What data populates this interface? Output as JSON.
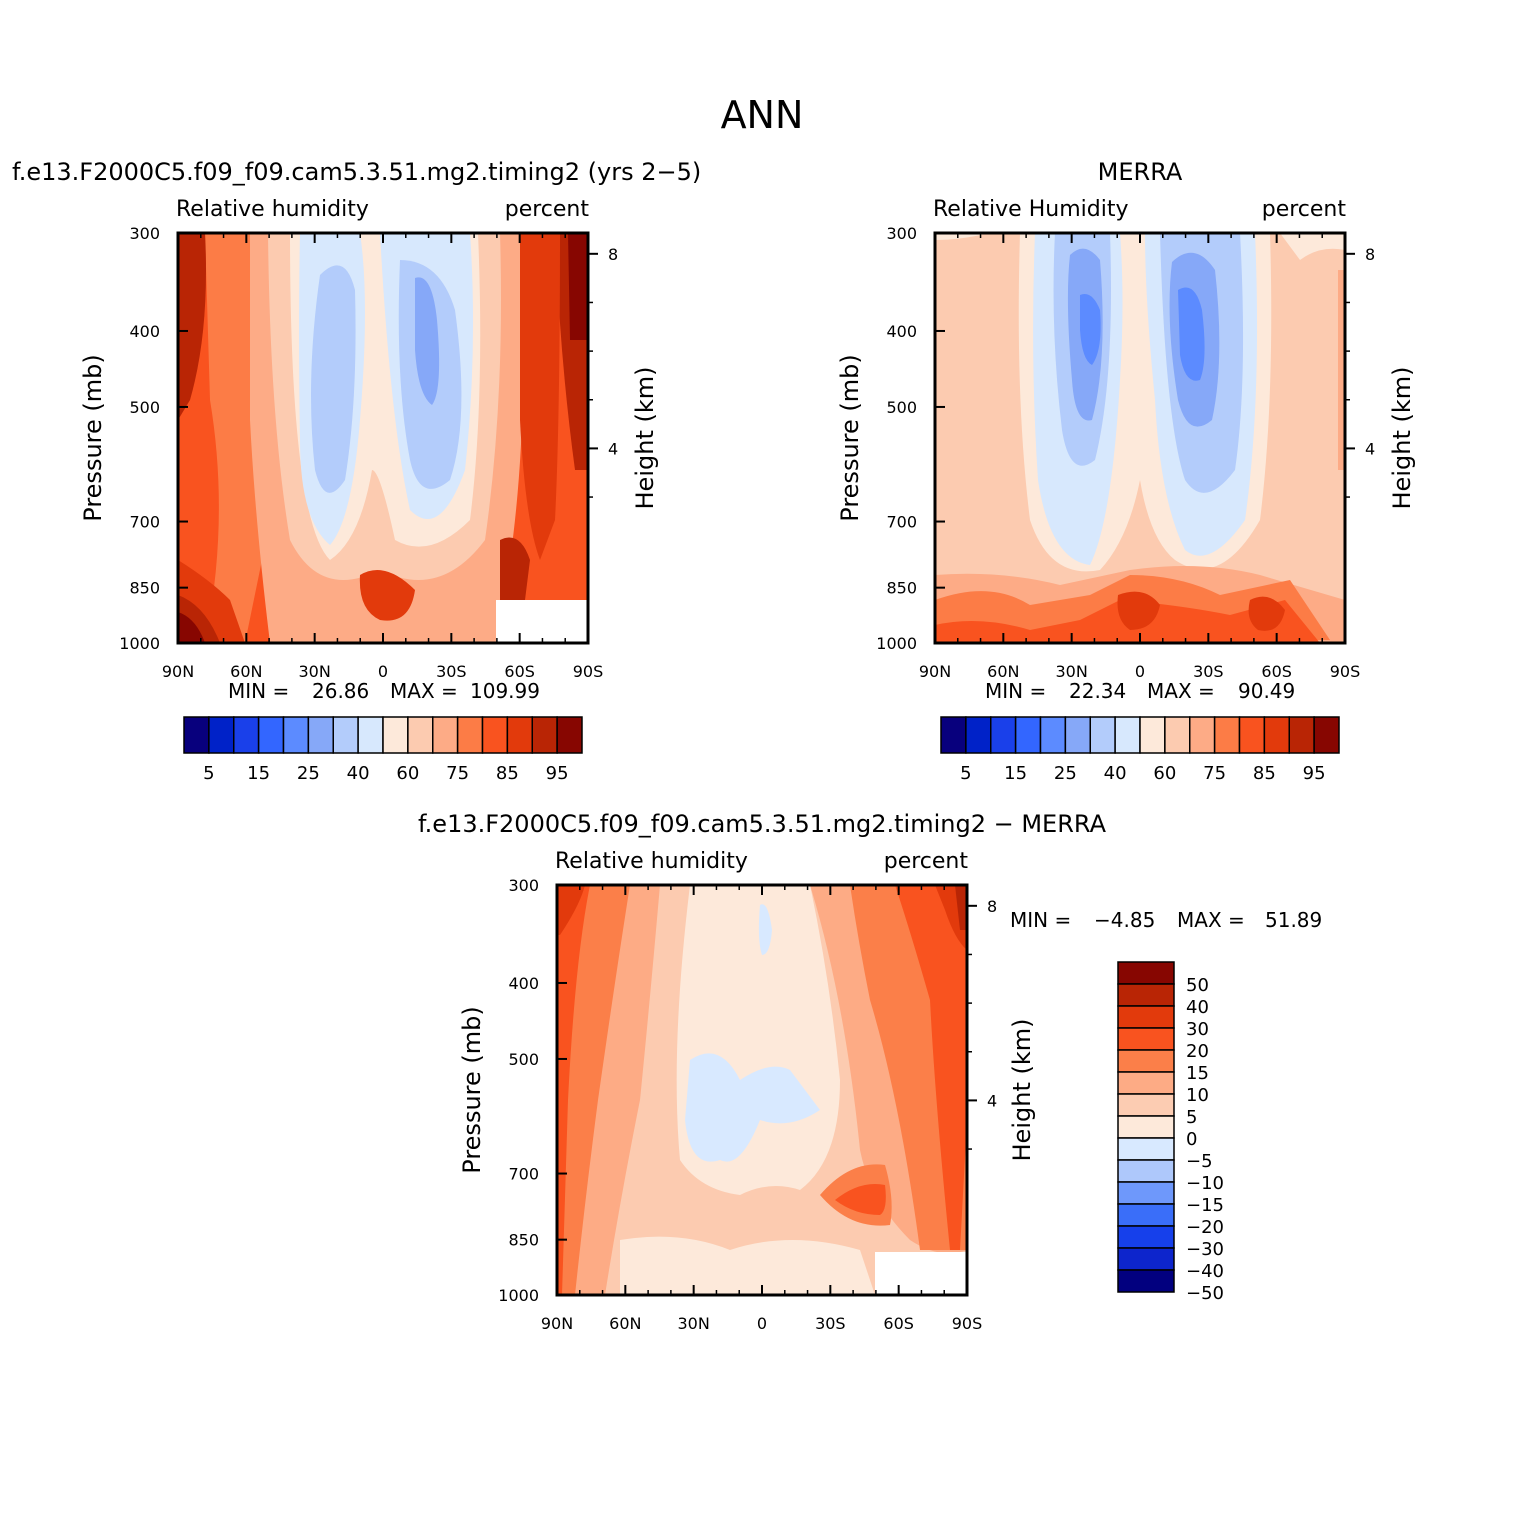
{
  "page_title": "ANN",
  "colors": {
    "rh_levels": [
      "#08007d",
      "#0022c8",
      "#1a40ea",
      "#3366ff",
      "#5c8bff",
      "#86a8f8",
      "#b3ccfb",
      "#d7e8fd",
      "#fde9da",
      "#fccbb0",
      "#fdab86",
      "#fc7c46",
      "#f9531f",
      "#e23a0c",
      "#b92505",
      "#870601"
    ],
    "diff_levels": [
      "#02007f",
      "#0d25cc",
      "#1640eb",
      "#3a6ef9",
      "#6e98fb",
      "#aec8fb",
      "#d8e9ff",
      "#fde9da",
      "#fcccb2",
      "#fdab85",
      "#fb7f49",
      "#f9531f",
      "#e23a0c",
      "#b92505",
      "#870601"
    ]
  },
  "panel_a": {
    "title": "f.e13.F2000C5.f09_f09.cam5.3.51.mg2.timing2 (yrs 2−5)",
    "left_string": "Relative humidity",
    "right_string": "percent",
    "min_label": "MIN =",
    "min_value": "26.86",
    "max_label": "MAX =",
    "max_value": "109.99"
  },
  "panel_b": {
    "title": "MERRA",
    "left_string": "Relative Humidity",
    "right_string": "percent",
    "min_label": "MIN =",
    "min_value": "22.34",
    "max_label": "MAX =",
    "max_value": "90.49"
  },
  "panel_c": {
    "title": "f.e13.F2000C5.f09_f09.cam5.3.51.mg2.timing2 − MERRA",
    "left_string": "Relative humidity",
    "right_string": "percent",
    "min_label": "MIN =",
    "min_value": "−4.85",
    "max_label": "MAX =",
    "max_value": "51.89"
  },
  "chart_data": [
    {
      "type": "heatmap",
      "title": "f.e13.F2000C5.f09_f09.cam5.3.51.mg2.timing2 (yrs 2−5)",
      "ylabel": "Pressure (mb)",
      "y2label": "Height (km)",
      "x_ticks": [
        "90N",
        "60N",
        "30N",
        "0",
        "30S",
        "60S",
        "90S"
      ],
      "x_values": [
        90,
        60,
        30,
        0,
        -30,
        -60,
        -90
      ],
      "y_ticks": [
        "300",
        "400",
        "500",
        "700",
        "850",
        "1000"
      ],
      "y_values": [
        300,
        400,
        500,
        700,
        850,
        1000
      ],
      "y2_ticks": [
        "8",
        "4"
      ],
      "y2_values": [
        8,
        4
      ],
      "ylim": [
        1000,
        300
      ],
      "contour_levels": [
        5,
        10,
        15,
        20,
        25,
        30,
        40,
        50,
        60,
        70,
        75,
        80,
        85,
        90,
        95
      ],
      "colorbar_labels": [
        "5",
        "15",
        "25",
        "40",
        "60",
        "75",
        "85",
        "95"
      ]
    },
    {
      "type": "heatmap",
      "title": "MERRA",
      "ylabel": "Pressure (mb)",
      "y2label": "Height (km)",
      "x_ticks": [
        "90N",
        "60N",
        "30N",
        "0",
        "30S",
        "60S",
        "90S"
      ],
      "x_values": [
        90,
        60,
        30,
        0,
        -30,
        -60,
        -90
      ],
      "y_ticks": [
        "300",
        "400",
        "500",
        "700",
        "850",
        "1000"
      ],
      "y_values": [
        300,
        400,
        500,
        700,
        850,
        1000
      ],
      "y2_ticks": [
        "8",
        "4"
      ],
      "y2_values": [
        8,
        4
      ],
      "ylim": [
        1000,
        300
      ],
      "contour_levels": [
        5,
        10,
        15,
        20,
        25,
        30,
        40,
        50,
        60,
        70,
        75,
        80,
        85,
        90,
        95
      ],
      "colorbar_labels": [
        "5",
        "15",
        "25",
        "40",
        "60",
        "75",
        "85",
        "95"
      ]
    },
    {
      "type": "heatmap",
      "title": "f.e13.F2000C5.f09_f09.cam5.3.51.mg2.timing2 − MERRA",
      "ylabel": "Pressure (mb)",
      "y2label": "Height (km)",
      "x_ticks": [
        "90N",
        "60N",
        "30N",
        "0",
        "30S",
        "60S",
        "90S"
      ],
      "x_values": [
        90,
        60,
        30,
        0,
        -30,
        -60,
        -90
      ],
      "y_ticks": [
        "300",
        "400",
        "500",
        "700",
        "850",
        "1000"
      ],
      "y_values": [
        300,
        400,
        500,
        700,
        850,
        1000
      ],
      "y2_ticks": [
        "8",
        "4"
      ],
      "y2_values": [
        8,
        4
      ],
      "ylim": [
        1000,
        300
      ],
      "contour_levels": [
        -50,
        -40,
        -30,
        -20,
        -15,
        -10,
        -5,
        0,
        5,
        10,
        15,
        20,
        30,
        40,
        50
      ],
      "colorbar_labels": [
        "50",
        "40",
        "30",
        "20",
        "15",
        "10",
        "5",
        "0",
        "−5",
        "−10",
        "−15",
        "−20",
        "−30",
        "−40",
        "−50"
      ]
    }
  ]
}
